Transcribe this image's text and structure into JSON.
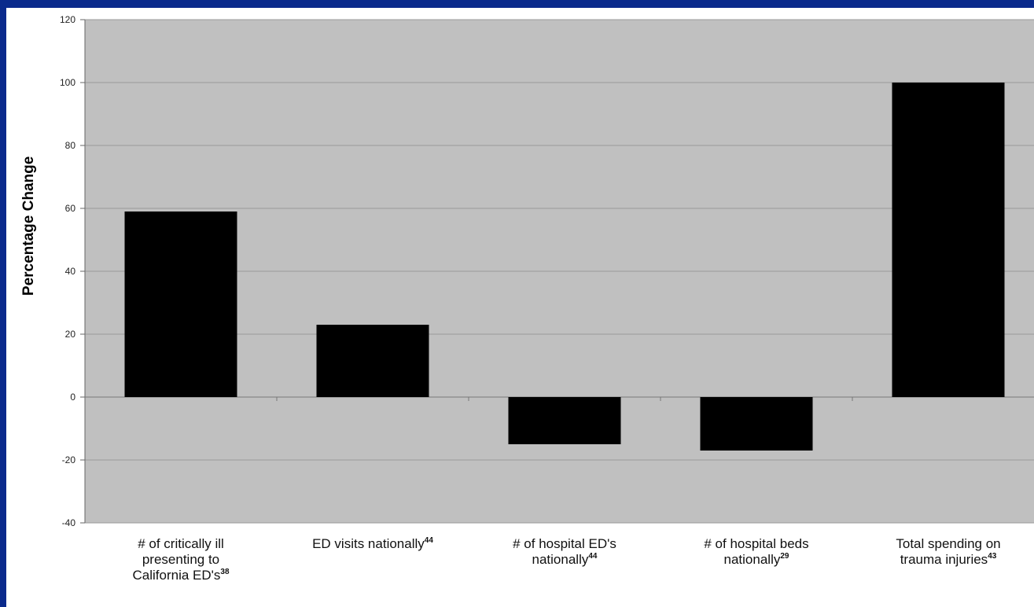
{
  "chart_data": {
    "type": "bar",
    "title": "",
    "xlabel": "",
    "ylabel": "Percentage Change",
    "ylim": [
      -40,
      120
    ],
    "yticks": [
      -40,
      -20,
      0,
      20,
      40,
      60,
      80,
      100,
      120
    ],
    "grid": true,
    "categories": [
      {
        "lines": [
          "# of critically ill",
          "presenting to",
          "California ED's"
        ],
        "superscript": "38"
      },
      {
        "lines": [
          "ED visits nationally"
        ],
        "superscript": "44"
      },
      {
        "lines": [
          "# of hospital ED's",
          "nationally"
        ],
        "superscript": "44"
      },
      {
        "lines": [
          "# of hospital beds",
          "nationally"
        ],
        "superscript": "29"
      },
      {
        "lines": [
          "Total spending on",
          "trauma injuries"
        ],
        "superscript": "43"
      }
    ],
    "values": [
      59,
      23,
      -15,
      -17,
      100
    ],
    "colors": {
      "bar": "#000000",
      "plot_bg": "#c0c0c0",
      "grid": "#9a9a9a",
      "page_bg": "#0a2a8c"
    }
  }
}
